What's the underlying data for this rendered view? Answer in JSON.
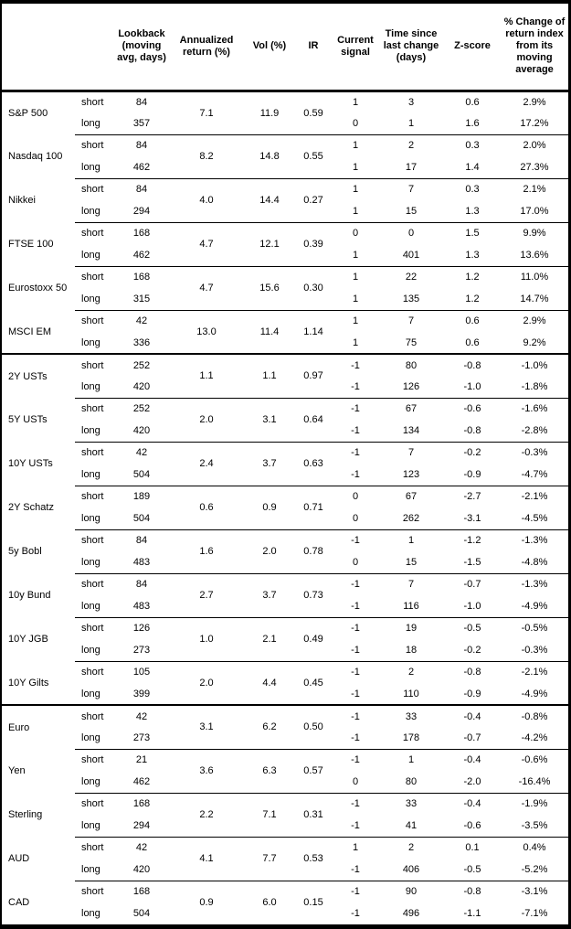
{
  "chart_data": {
    "type": "table",
    "title": "",
    "columns": [
      "",
      "",
      "Lookback (moving avg, days)",
      "Annualized return (%)",
      "Vol (%)",
      "IR",
      "Current signal",
      "Time since last change (days)",
      "Z-score",
      "% Change of return index from its moving average"
    ],
    "merged_columns_note": "Annualized return, Vol and IR are shared across the short/long row pair of each asset",
    "rows": [
      [
        "S&P 500",
        "short",
        "84",
        "7.1",
        "11.9",
        "0.59",
        "1",
        "3",
        "0.6",
        "2.9%"
      ],
      [
        "S&P 500",
        "long",
        "357",
        "7.1",
        "11.9",
        "0.59",
        "0",
        "1",
        "1.6",
        "17.2%"
      ],
      [
        "Nasdaq 100",
        "short",
        "84",
        "8.2",
        "14.8",
        "0.55",
        "1",
        "2",
        "0.3",
        "2.0%"
      ],
      [
        "Nasdaq 100",
        "long",
        "462",
        "8.2",
        "14.8",
        "0.55",
        "1",
        "17",
        "1.4",
        "27.3%"
      ],
      [
        "Nikkei",
        "short",
        "84",
        "4.0",
        "14.4",
        "0.27",
        "1",
        "7",
        "0.3",
        "2.1%"
      ],
      [
        "Nikkei",
        "long",
        "294",
        "4.0",
        "14.4",
        "0.27",
        "1",
        "15",
        "1.3",
        "17.0%"
      ],
      [
        "FTSE 100",
        "short",
        "168",
        "4.7",
        "12.1",
        "0.39",
        "0",
        "0",
        "1.5",
        "9.9%"
      ],
      [
        "FTSE 100",
        "long",
        "462",
        "4.7",
        "12.1",
        "0.39",
        "1",
        "401",
        "1.3",
        "13.6%"
      ],
      [
        "Eurostoxx 50",
        "short",
        "168",
        "4.7",
        "15.6",
        "0.30",
        "1",
        "22",
        "1.2",
        "11.0%"
      ],
      [
        "Eurostoxx 50",
        "long",
        "315",
        "4.7",
        "15.6",
        "0.30",
        "1",
        "135",
        "1.2",
        "14.7%"
      ],
      [
        "MSCI EM",
        "short",
        "42",
        "13.0",
        "11.4",
        "1.14",
        "1",
        "7",
        "0.6",
        "2.9%"
      ],
      [
        "MSCI EM",
        "long",
        "336",
        "13.0",
        "11.4",
        "1.14",
        "1",
        "75",
        "0.6",
        "9.2%"
      ],
      [
        "2Y USTs",
        "short",
        "252",
        "1.1",
        "1.1",
        "0.97",
        "-1",
        "80",
        "-0.8",
        "-1.0%"
      ],
      [
        "2Y USTs",
        "long",
        "420",
        "1.1",
        "1.1",
        "0.97",
        "-1",
        "126",
        "-1.0",
        "-1.8%"
      ],
      [
        "5Y USTs",
        "short",
        "252",
        "2.0",
        "3.1",
        "0.64",
        "-1",
        "67",
        "-0.6",
        "-1.6%"
      ],
      [
        "5Y USTs",
        "long",
        "420",
        "2.0",
        "3.1",
        "0.64",
        "-1",
        "134",
        "-0.8",
        "-2.8%"
      ],
      [
        "10Y USTs",
        "short",
        "42",
        "2.4",
        "3.7",
        "0.63",
        "-1",
        "7",
        "-0.2",
        "-0.3%"
      ],
      [
        "10Y USTs",
        "long",
        "504",
        "2.4",
        "3.7",
        "0.63",
        "-1",
        "123",
        "-0.9",
        "-4.7%"
      ],
      [
        "2Y Schatz",
        "short",
        "189",
        "0.6",
        "0.9",
        "0.71",
        "0",
        "67",
        "-2.7",
        "-2.1%"
      ],
      [
        "2Y Schatz",
        "long",
        "504",
        "0.6",
        "0.9",
        "0.71",
        "0",
        "262",
        "-3.1",
        "-4.5%"
      ],
      [
        "5y Bobl",
        "short",
        "84",
        "1.6",
        "2.0",
        "0.78",
        "-1",
        "1",
        "-1.2",
        "-1.3%"
      ],
      [
        "5y Bobl",
        "long",
        "483",
        "1.6",
        "2.0",
        "0.78",
        "0",
        "15",
        "-1.5",
        "-4.8%"
      ],
      [
        "10y Bund",
        "short",
        "84",
        "2.7",
        "3.7",
        "0.73",
        "-1",
        "7",
        "-0.7",
        "-1.3%"
      ],
      [
        "10y Bund",
        "long",
        "483",
        "2.7",
        "3.7",
        "0.73",
        "-1",
        "116",
        "-1.0",
        "-4.9%"
      ],
      [
        "10Y JGB",
        "short",
        "126",
        "1.0",
        "2.1",
        "0.49",
        "-1",
        "19",
        "-0.5",
        "-0.5%"
      ],
      [
        "10Y JGB",
        "long",
        "273",
        "1.0",
        "2.1",
        "0.49",
        "-1",
        "18",
        "-0.2",
        "-0.3%"
      ],
      [
        "10Y Gilts",
        "short",
        "105",
        "2.0",
        "4.4",
        "0.45",
        "-1",
        "2",
        "-0.8",
        "-2.1%"
      ],
      [
        "10Y Gilts",
        "long",
        "399",
        "2.0",
        "4.4",
        "0.45",
        "-1",
        "110",
        "-0.9",
        "-4.9%"
      ],
      [
        "Euro",
        "short",
        "42",
        "3.1",
        "6.2",
        "0.50",
        "-1",
        "33",
        "-0.4",
        "-0.8%"
      ],
      [
        "Euro",
        "long",
        "273",
        "3.1",
        "6.2",
        "0.50",
        "-1",
        "178",
        "-0.7",
        "-4.2%"
      ],
      [
        "Yen",
        "short",
        "21",
        "3.6",
        "6.3",
        "0.57",
        "-1",
        "1",
        "-0.4",
        "-0.6%"
      ],
      [
        "Yen",
        "long",
        "462",
        "3.6",
        "6.3",
        "0.57",
        "0",
        "80",
        "-2.0",
        "-16.4%"
      ],
      [
        "Sterling",
        "short",
        "168",
        "2.2",
        "7.1",
        "0.31",
        "-1",
        "33",
        "-0.4",
        "-1.9%"
      ],
      [
        "Sterling",
        "long",
        "294",
        "2.2",
        "7.1",
        "0.31",
        "-1",
        "41",
        "-0.6",
        "-3.5%"
      ],
      [
        "AUD",
        "short",
        "42",
        "4.1",
        "7.7",
        "0.53",
        "1",
        "2",
        "0.1",
        "0.4%"
      ],
      [
        "AUD",
        "long",
        "420",
        "4.1",
        "7.7",
        "0.53",
        "-1",
        "406",
        "-0.5",
        "-5.2%"
      ],
      [
        "CAD",
        "short",
        "168",
        "0.9",
        "6.0",
        "0.15",
        "-1",
        "90",
        "-0.8",
        "-3.1%"
      ],
      [
        "CAD",
        "long",
        "504",
        "0.9",
        "6.0",
        "0.15",
        "-1",
        "496",
        "-1.1",
        "-7.1%"
      ]
    ]
  },
  "table": {
    "col_headers": {
      "asset": "",
      "horizon": "",
      "lookback": "Lookback (moving avg, days)",
      "annualized_return": "Annualized return (%)",
      "vol": "Vol (%)",
      "ir": "IR",
      "current_signal": "Current signal",
      "time_since_last_change": "Time since last change (days)",
      "z_score": "Z-score",
      "pct_change": "% Change of return index from its moving average"
    }
  },
  "layout": {
    "section_start_asset_indices": [
      6,
      14
    ],
    "sections": [
      "equities",
      "rates",
      "fx"
    ],
    "border_color": "#000000",
    "background_color": "#ffffff"
  }
}
